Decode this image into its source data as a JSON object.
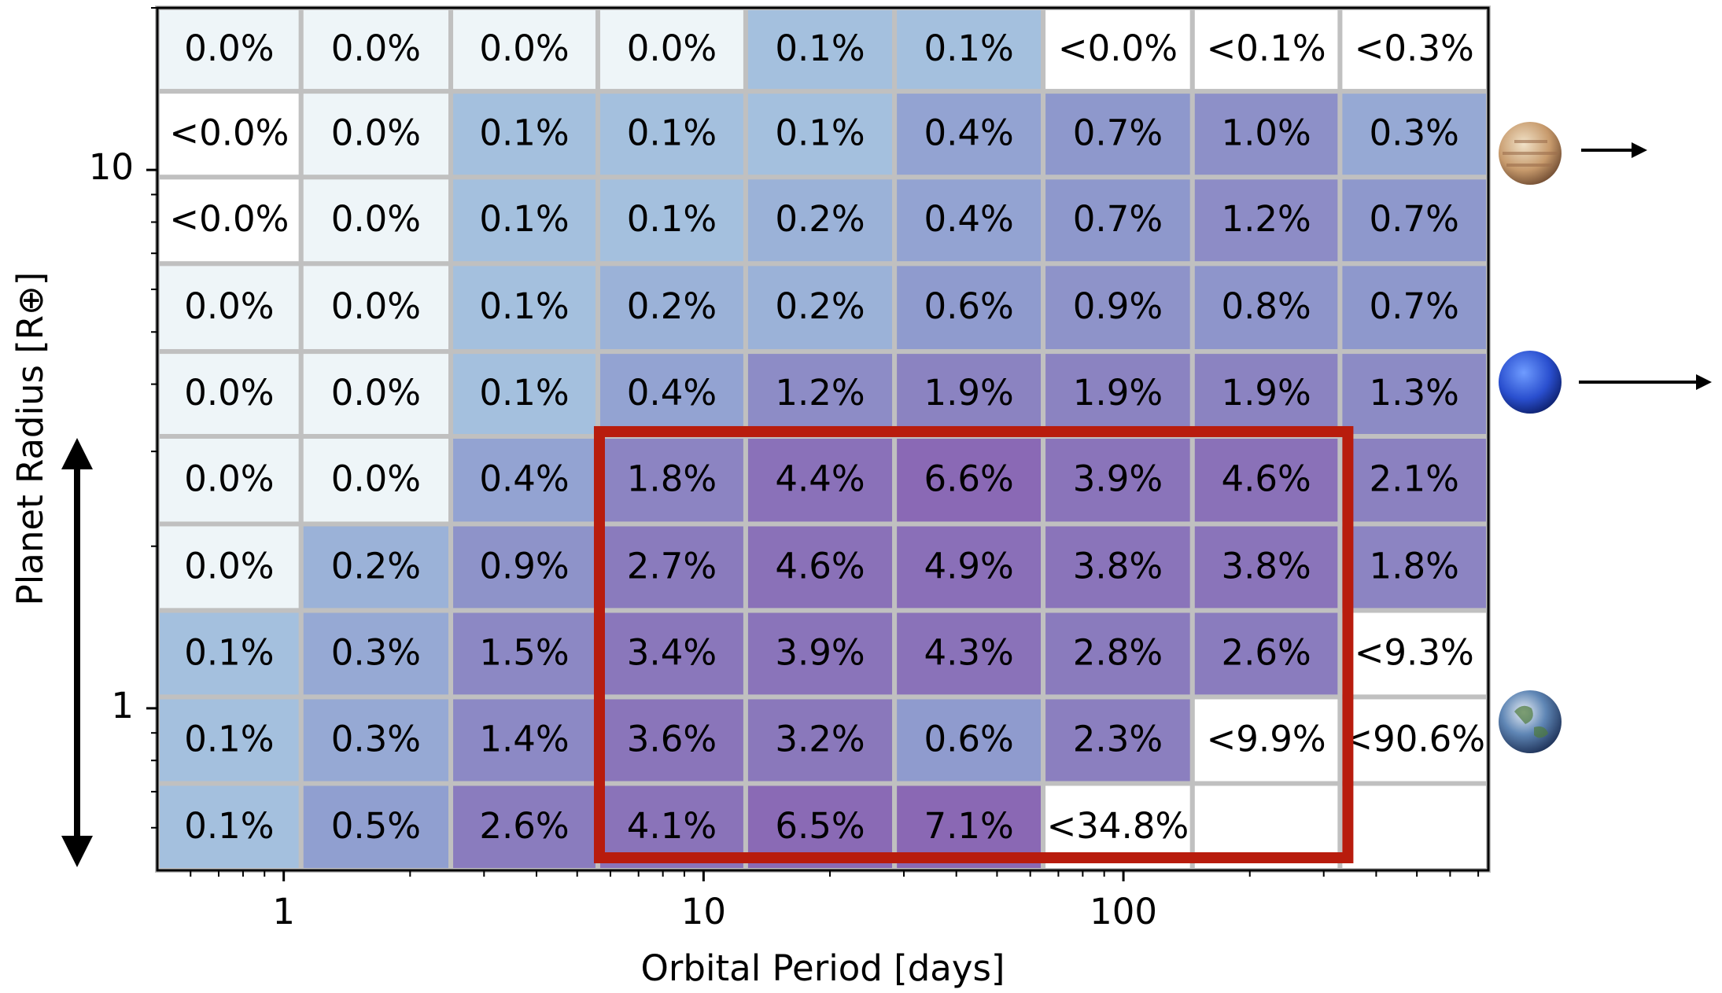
{
  "chart_data": {
    "type": "heatmap",
    "x_label": "Orbital Period [days]",
    "y_label": "Planet Radius [R⊕]",
    "log_x": true,
    "log_y": true,
    "xlim": [
      0.5,
      740
    ],
    "ylim": [
      0.5,
      20
    ],
    "xticks": [
      1,
      10,
      100
    ],
    "yticks": [
      1,
      10
    ],
    "xminorticks": [
      0.6,
      0.7,
      0.8,
      0.9,
      2,
      3,
      4,
      5,
      6,
      7,
      8,
      9,
      20,
      30,
      40,
      50,
      60,
      70,
      80,
      90,
      200,
      300,
      400,
      500,
      600,
      700
    ],
    "yminorticks": [
      0.6,
      0.7,
      0.8,
      0.9,
      2,
      3,
      4,
      5,
      6,
      7,
      8,
      9,
      20
    ],
    "x_bins": [
      0.5,
      1.1,
      2.5,
      5.6,
      12.6,
      28.5,
      64.4,
      146,
      328,
      740
    ],
    "y_bins": [
      0.5,
      0.725,
      1.05,
      1.52,
      2.2,
      3.2,
      4.6,
      6.7,
      9.7,
      14,
      20
    ],
    "values": [
      [
        0.1,
        0.5,
        2.6,
        4.1,
        6.5,
        7.1,
        34.8,
        null,
        null
      ],
      [
        0.1,
        0.3,
        1.4,
        3.6,
        3.2,
        0.6,
        2.3,
        9.9,
        90.6
      ],
      [
        0.1,
        0.3,
        1.5,
        3.4,
        3.9,
        4.3,
        2.8,
        2.6,
        9.3
      ],
      [
        0.0,
        0.2,
        0.9,
        2.7,
        4.6,
        4.9,
        3.8,
        3.8,
        1.8
      ],
      [
        0.0,
        0.0,
        0.4,
        1.8,
        4.4,
        6.6,
        3.9,
        4.6,
        2.1
      ],
      [
        0.0,
        0.0,
        0.1,
        0.4,
        1.2,
        1.9,
        1.9,
        1.9,
        1.3
      ],
      [
        0.0,
        0.0,
        0.1,
        0.2,
        0.2,
        0.6,
        0.9,
        0.8,
        0.7
      ],
      [
        0.0,
        0.0,
        0.1,
        0.1,
        0.2,
        0.4,
        0.7,
        1.2,
        0.7
      ],
      [
        0.0,
        0.0,
        0.1,
        0.1,
        0.1,
        0.4,
        0.7,
        1.0,
        0.3
      ],
      [
        0.0,
        0.0,
        0.0,
        0.0,
        0.1,
        0.1,
        0.0,
        0.1,
        0.3
      ]
    ],
    "value_labels": [
      [
        "0.1%",
        "0.5%",
        "2.6%",
        "4.1%",
        "6.5%",
        "7.1%",
        "<34.8%",
        null,
        null
      ],
      [
        "0.1%",
        "0.3%",
        "1.4%",
        "3.6%",
        "3.2%",
        "0.6%",
        "2.3%",
        "<9.9%",
        "<90.6%"
      ],
      [
        "0.1%",
        "0.3%",
        "1.5%",
        "3.4%",
        "3.9%",
        "4.3%",
        "2.8%",
        "2.6%",
        "<9.3%"
      ],
      [
        "0.0%",
        "0.2%",
        "0.9%",
        "2.7%",
        "4.6%",
        "4.9%",
        "3.8%",
        "3.8%",
        "1.8%"
      ],
      [
        "0.0%",
        "0.0%",
        "0.4%",
        "1.8%",
        "4.4%",
        "6.6%",
        "3.9%",
        "4.6%",
        "2.1%"
      ],
      [
        "0.0%",
        "0.0%",
        "0.1%",
        "0.4%",
        "1.2%",
        "1.9%",
        "1.9%",
        "1.9%",
        "1.3%"
      ],
      [
        "0.0%",
        "0.0%",
        "0.1%",
        "0.2%",
        "0.2%",
        "0.6%",
        "0.9%",
        "0.8%",
        "0.7%"
      ],
      [
        "<0.0%",
        "0.0%",
        "0.1%",
        "0.1%",
        "0.2%",
        "0.4%",
        "0.7%",
        "1.2%",
        "0.7%"
      ],
      [
        "<0.0%",
        "0.0%",
        "0.1%",
        "0.1%",
        "0.1%",
        "0.4%",
        "0.7%",
        "1.0%",
        "0.3%"
      ],
      [
        "0.0%",
        "0.0%",
        "0.0%",
        "0.0%",
        "0.1%",
        "0.1%",
        "<0.0%",
        "<0.1%",
        "<0.3%"
      ]
    ],
    "colormap": [
      "#eef5f8",
      "#a4c0de",
      "#8f9dcf",
      "#8a79bc",
      "#8a57ad",
      "#85309a"
    ],
    "limit_color": "#ffffff",
    "grid_color": "#c0c0c0",
    "highlight_color": "#b81c0d"
  }
}
